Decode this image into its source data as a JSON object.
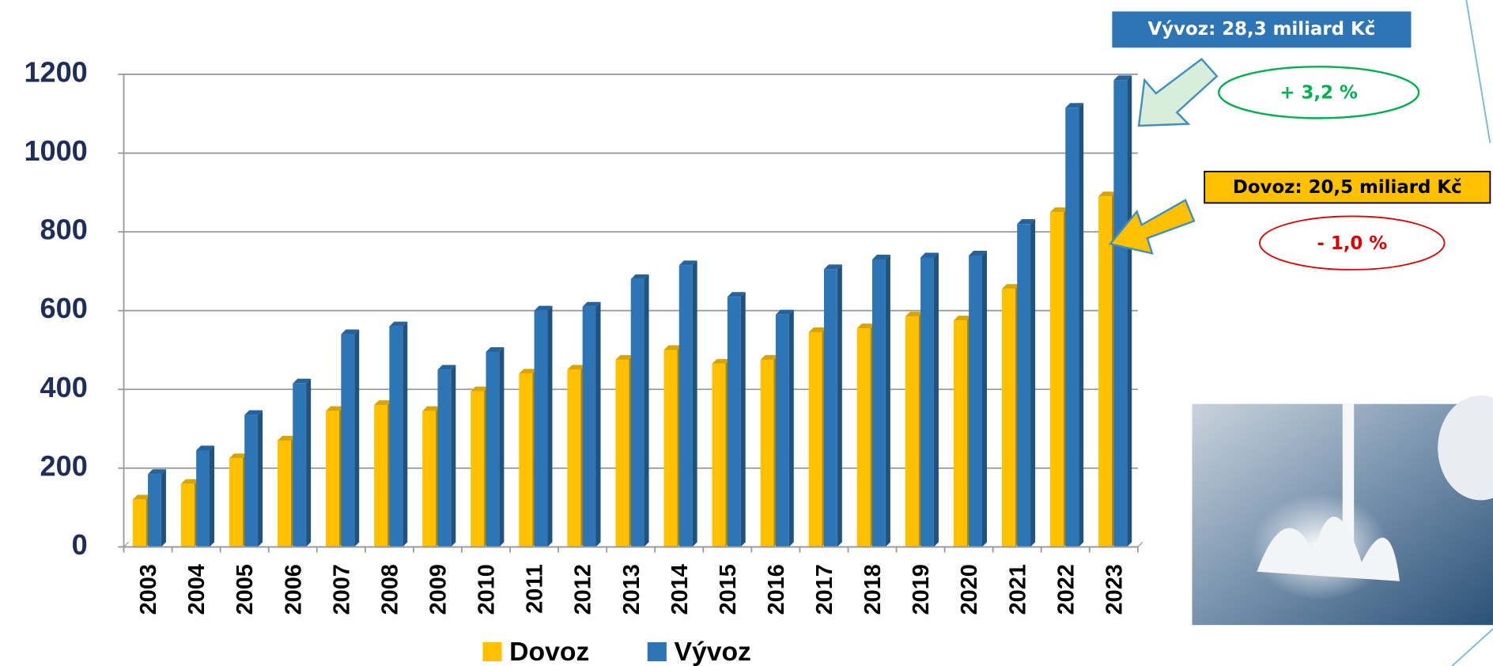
{
  "chart_data": {
    "type": "bar",
    "categories": [
      "2003",
      "2004",
      "2005",
      "2006",
      "2007",
      "2008",
      "2009",
      "2010",
      "2011",
      "2012",
      "2013",
      "2014",
      "2015",
      "2016",
      "2017",
      "2018",
      "2019",
      "2020",
      "2021",
      "2022",
      "2023"
    ],
    "series": [
      {
        "name": "Dovoz",
        "color": "#ffc000",
        "values": [
          120,
          160,
          225,
          270,
          345,
          360,
          345,
          395,
          440,
          450,
          475,
          500,
          465,
          475,
          545,
          555,
          585,
          575,
          655,
          850,
          890
        ]
      },
      {
        "name": "Vývoz",
        "color": "#2e75b6",
        "values": [
          185,
          245,
          335,
          415,
          540,
          560,
          450,
          495,
          600,
          610,
          680,
          715,
          635,
          590,
          705,
          730,
          735,
          740,
          820,
          1115,
          1185
        ]
      }
    ],
    "ylim": [
      0,
      1200
    ],
    "yticks": [
      0,
      200,
      400,
      600,
      800,
      1000,
      1200
    ],
    "grid": true,
    "annotations": {
      "export_total": "Vývoz: 28,3 miliard Kč",
      "export_change": "+ 3,2 %",
      "import_total": "Dovoz: 20,5 miliard Kč",
      "import_change": "- 1,0 %"
    }
  }
}
